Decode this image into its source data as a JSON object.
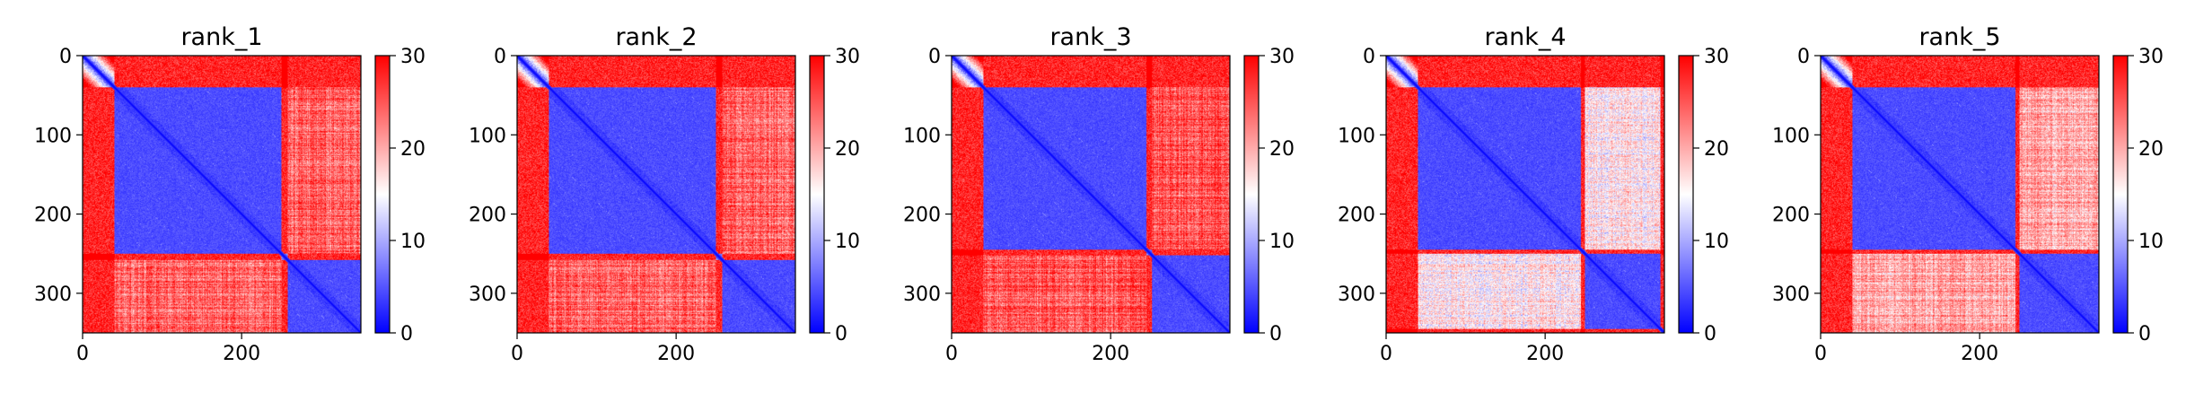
{
  "chart_data": [
    {
      "type": "heatmap",
      "title": "rank_1",
      "size": 350,
      "xticks": [
        0,
        200
      ],
      "yticks": [
        0,
        100,
        200,
        300
      ],
      "colorbar": {
        "range": [
          0,
          30
        ],
        "ticks": [
          0,
          10,
          20,
          30
        ],
        "colors": [
          "#0000ff",
          "#ffffff",
          "#ff0000"
        ]
      },
      "domains": [
        {
          "start": 40,
          "end": 250
        },
        {
          "start": 258,
          "end": 350
        }
      ],
      "inter_domain_distance": 24
    },
    {
      "type": "heatmap",
      "title": "rank_2",
      "size": 350,
      "xticks": [
        0,
        200
      ],
      "yticks": [
        0,
        100,
        200,
        300
      ],
      "colorbar": {
        "range": [
          0,
          30
        ],
        "ticks": [
          0,
          10,
          20,
          30
        ],
        "colors": [
          "#0000ff",
          "#ffffff",
          "#ff0000"
        ]
      },
      "domains": [
        {
          "start": 40,
          "end": 250
        },
        {
          "start": 258,
          "end": 350
        }
      ],
      "inter_domain_distance": 24
    },
    {
      "type": "heatmap",
      "title": "rank_3",
      "size": 350,
      "xticks": [
        0,
        200
      ],
      "yticks": [
        0,
        100,
        200,
        300
      ],
      "colorbar": {
        "range": [
          0,
          30
        ],
        "ticks": [
          0,
          10,
          20,
          30
        ],
        "colors": [
          "#0000ff",
          "#ffffff",
          "#ff0000"
        ]
      },
      "domains": [
        {
          "start": 40,
          "end": 245
        },
        {
          "start": 252,
          "end": 350
        }
      ],
      "inter_domain_distance": 25
    },
    {
      "type": "heatmap",
      "title": "rank_4",
      "size": 350,
      "xticks": [
        0,
        200
      ],
      "yticks": [
        0,
        100,
        200,
        300
      ],
      "colorbar": {
        "range": [
          0,
          30
        ],
        "ticks": [
          0,
          10,
          20,
          30
        ],
        "colors": [
          "#0000ff",
          "#ffffff",
          "#ff0000"
        ]
      },
      "domains": [
        {
          "start": 40,
          "end": 245
        },
        {
          "start": 250,
          "end": 345
        }
      ],
      "inter_domain_distance": 16
    },
    {
      "type": "heatmap",
      "title": "rank_5",
      "size": 350,
      "xticks": [
        0,
        200
      ],
      "yticks": [
        0,
        100,
        200,
        300
      ],
      "colorbar": {
        "range": [
          0,
          30
        ],
        "ticks": [
          0,
          10,
          20,
          30
        ],
        "colors": [
          "#0000ff",
          "#ffffff",
          "#ff0000"
        ]
      },
      "domains": [
        {
          "start": 40,
          "end": 245
        },
        {
          "start": 250,
          "end": 350
        }
      ],
      "inter_domain_distance": 20
    }
  ]
}
